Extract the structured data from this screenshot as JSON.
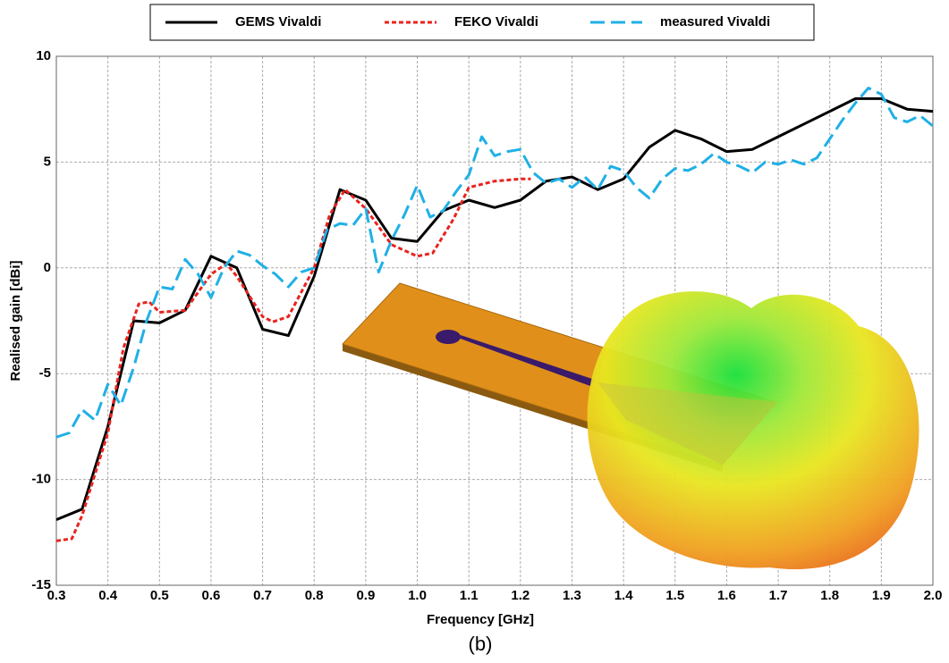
{
  "chart_data": {
    "type": "line",
    "xlabel": "Frequency [GHz]",
    "ylabel": "Realised gain [dBi]",
    "caption": "(b)",
    "xlim": [
      0.3,
      2.0
    ],
    "ylim": [
      -15,
      10
    ],
    "xticks": [
      0.3,
      0.4,
      0.5,
      0.6,
      0.7,
      0.8,
      0.9,
      {
        "value": 1,
        "label": "1.0"
      },
      1.1,
      1.2,
      1.3,
      1.4,
      1.5,
      1.6,
      1.7,
      1.8,
      1.9,
      {
        "value": 2,
        "label": "2.0"
      }
    ],
    "yticks": [
      10,
      5,
      0,
      -5,
      -10,
      -15
    ],
    "grid": true,
    "legend": "top",
    "series": [
      {
        "name": "GEMS Vivaldi",
        "color": "#000000",
        "dash": "solid",
        "x": [
          0.3,
          0.35,
          0.4,
          0.45,
          0.5,
          0.55,
          0.6,
          0.65,
          0.7,
          0.75,
          0.8,
          0.85,
          0.9,
          0.95,
          1.0,
          1.05,
          1.1,
          1.15,
          1.2,
          1.25,
          1.3,
          1.35,
          1.4,
          1.45,
          1.5,
          1.55,
          1.6,
          1.65,
          1.7,
          1.75,
          1.8,
          1.85,
          1.9,
          1.95,
          2.0
        ],
        "values": [
          -11.9,
          -11.4,
          -7.5,
          -2.5,
          -2.6,
          -2.0,
          0.55,
          0.0,
          -2.9,
          -3.2,
          -0.4,
          3.7,
          3.2,
          1.4,
          1.25,
          2.7,
          3.2,
          2.85,
          3.2,
          4.1,
          4.3,
          3.7,
          4.2,
          5.7,
          6.5,
          6.1,
          5.5,
          5.6,
          6.2,
          6.8,
          7.4,
          8.0,
          8.0,
          7.5,
          7.4
        ]
      },
      {
        "name": "FEKO Vivaldi",
        "color": "#e8231f",
        "dash": "dotted",
        "x": [
          0.3,
          0.33,
          0.35,
          0.4,
          0.43,
          0.46,
          0.48,
          0.5,
          0.55,
          0.6,
          0.63,
          0.65,
          0.7,
          0.72,
          0.75,
          0.8,
          0.83,
          0.86,
          0.9,
          0.95,
          1.0,
          1.03,
          1.07,
          1.1,
          1.15,
          1.2,
          1.22
        ],
        "values": [
          -12.9,
          -12.8,
          -11.7,
          -7.8,
          -3.8,
          -1.7,
          -1.6,
          -2.1,
          -2.0,
          -0.3,
          0.2,
          -0.4,
          -2.3,
          -2.55,
          -2.3,
          0.0,
          2.5,
          3.7,
          2.8,
          1.1,
          0.55,
          0.7,
          2.3,
          3.8,
          4.1,
          4.2,
          4.2
        ]
      },
      {
        "name": "measured Vivaldi",
        "color": "#1fb0e6",
        "dash": "dashed",
        "x": [
          0.3,
          0.325,
          0.35,
          0.375,
          0.4,
          0.425,
          0.45,
          0.475,
          0.5,
          0.525,
          0.55,
          0.575,
          0.6,
          0.625,
          0.65,
          0.675,
          0.7,
          0.725,
          0.75,
          0.775,
          0.8,
          0.825,
          0.85,
          0.875,
          0.9,
          0.925,
          0.95,
          0.975,
          1.0,
          1.025,
          1.05,
          1.075,
          1.1,
          1.125,
          1.15,
          1.175,
          1.2,
          1.225,
          1.25,
          1.275,
          1.3,
          1.325,
          1.35,
          1.375,
          1.4,
          1.425,
          1.45,
          1.475,
          1.5,
          1.525,
          1.55,
          1.575,
          1.6,
          1.625,
          1.65,
          1.675,
          1.7,
          1.725,
          1.75,
          1.775,
          1.8,
          1.825,
          1.85,
          1.875,
          1.9,
          1.925,
          1.95,
          1.975,
          2.0
        ],
        "values": [
          -8.0,
          -7.8,
          -6.7,
          -7.2,
          -5.5,
          -6.5,
          -4.7,
          -2.5,
          -0.9,
          -1.0,
          0.4,
          -0.3,
          -1.4,
          0.0,
          0.8,
          0.6,
          0.1,
          -0.3,
          -0.9,
          -0.2,
          0.0,
          1.8,
          2.1,
          2.0,
          2.8,
          -0.2,
          1.3,
          2.5,
          3.9,
          2.4,
          2.7,
          3.6,
          4.4,
          6.2,
          5.3,
          5.5,
          5.6,
          4.5,
          4.0,
          4.2,
          3.8,
          4.3,
          3.7,
          4.8,
          4.6,
          3.8,
          3.3,
          4.2,
          4.7,
          4.6,
          4.9,
          5.4,
          5.0,
          4.8,
          4.5,
          5.0,
          4.9,
          5.1,
          4.9,
          5.2,
          6.1,
          7.0,
          7.8,
          8.5,
          8.2,
          7.1,
          6.9,
          7.2,
          6.7
        ]
      }
    ]
  }
}
